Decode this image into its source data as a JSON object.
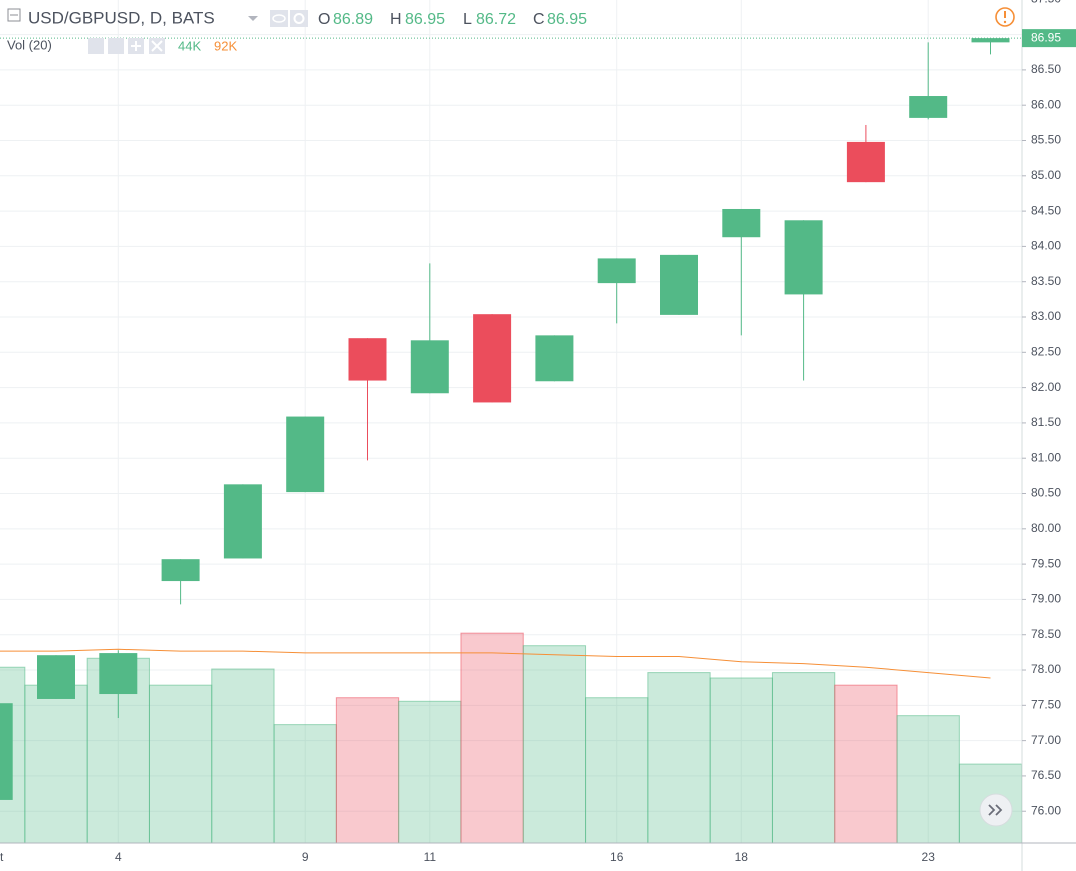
{
  "chart_data": {
    "type": "candlestick",
    "title": "USD/GBPUSD, D, BATS",
    "ohlc_labels": [
      "O",
      "H",
      "L",
      "C"
    ],
    "categories": [
      "t",
      null,
      "4",
      null,
      null,
      "9",
      null,
      "11",
      null,
      null,
      "16",
      null,
      "18",
      null,
      null,
      "23",
      null
    ],
    "open": [
      76.16,
      77.59,
      77.66,
      79.26,
      79.58,
      80.52,
      82.7,
      81.92,
      83.04,
      82.09,
      83.48,
      83.03,
      84.13,
      83.32,
      85.48,
      85.82,
      86.89
    ],
    "high": [
      77.53,
      78.21,
      78.28,
      79.57,
      80.63,
      81.59,
      82.7,
      83.76,
      83.04,
      82.74,
      83.83,
      83.88,
      84.53,
      84.37,
      85.72,
      86.89,
      86.95
    ],
    "low": [
      76.16,
      77.59,
      77.32,
      78.93,
      79.58,
      80.52,
      80.97,
      81.92,
      81.79,
      82.09,
      82.91,
      83.03,
      82.74,
      82.1,
      84.91,
      85.8,
      86.72
    ],
    "close": [
      77.53,
      78.21,
      78.24,
      79.57,
      80.63,
      81.59,
      82.1,
      82.67,
      81.79,
      82.74,
      83.83,
      83.88,
      84.53,
      84.37,
      84.91,
      86.13,
      86.95
    ],
    "up_color": "#53b987",
    "down_color": "#eb4d5c",
    "ylim": [
      75.55,
      87.49
    ],
    "yticks": [
      {
        "value": 76,
        "label": "76.00"
      },
      {
        "value": 76.5,
        "label": "76.50"
      },
      {
        "value": 77,
        "label": "77.00"
      },
      {
        "value": 77.5,
        "label": "77.50"
      },
      {
        "value": 78,
        "label": "78.00"
      },
      {
        "value": 78.5,
        "label": "78.50"
      },
      {
        "value": 79,
        "label": "79.00"
      },
      {
        "value": 79.5,
        "label": "79.50"
      },
      {
        "value": 80,
        "label": "80.00"
      },
      {
        "value": 80.5,
        "label": "80.50"
      },
      {
        "value": 81,
        "label": "81.00"
      },
      {
        "value": 81.5,
        "label": "81.50"
      },
      {
        "value": 82,
        "label": "82.00"
      },
      {
        "value": 82.5,
        "label": "82.50"
      },
      {
        "value": 83,
        "label": "83.00"
      },
      {
        "value": 83.5,
        "label": "83.50"
      },
      {
        "value": 84,
        "label": "84.00"
      },
      {
        "value": 84.5,
        "label": "84.50"
      },
      {
        "value": 85,
        "label": "85.00"
      },
      {
        "value": 85.5,
        "label": "85.50"
      },
      {
        "value": 86,
        "label": "86.00"
      },
      {
        "value": 86.5,
        "label": "86.50"
      },
      {
        "value": 87,
        "label": "87.00"
      },
      {
        "value": 87.5,
        "label": "87.50"
      }
    ],
    "grid": true,
    "volume": {
      "name": "Vol (20)",
      "values": [
        98000,
        88000,
        103000,
        88000,
        97000,
        66000,
        81000,
        79000,
        117000,
        110000,
        81000,
        95000,
        92000,
        95000,
        88000,
        71000,
        44000
      ],
      "value_labels": [
        null,
        null,
        null,
        null,
        null,
        null,
        null,
        null,
        null,
        null,
        null,
        null,
        null,
        null,
        null,
        null,
        "44K"
      ],
      "ma_values": [
        107000,
        107000,
        108000,
        107000,
        107000,
        106000,
        106000,
        106000,
        106000,
        105000,
        104000,
        104000,
        101000,
        100000,
        98000,
        95000,
        92000
      ],
      "ma_value_labels": [
        null,
        null,
        null,
        null,
        null,
        null,
        null,
        null,
        null,
        null,
        null,
        null,
        null,
        null,
        null,
        null,
        "92K"
      ],
      "ma_color": "#f68f37",
      "y2lim": [
        0,
        470000
      ]
    }
  }
}
